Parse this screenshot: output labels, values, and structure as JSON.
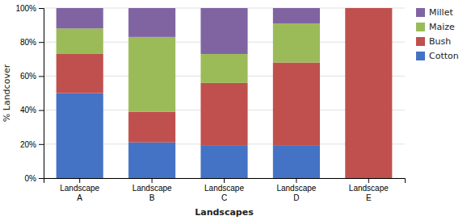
{
  "chart_data": {
    "type": "bar",
    "stacked": true,
    "categories": [
      "Landscape\nA",
      "Landscape\nB",
      "Landscape\nC",
      "Landscape\nD",
      "Landscape\nE"
    ],
    "series": [
      {
        "name": "Cotton",
        "color": "#4472C4",
        "values": [
          50,
          21,
          19,
          19,
          0
        ]
      },
      {
        "name": "Bush",
        "color": "#C0504D",
        "values": [
          23,
          18,
          37,
          49,
          100
        ]
      },
      {
        "name": "Maize",
        "color": "#9BBB59",
        "values": [
          15,
          44,
          17,
          23,
          0
        ]
      },
      {
        "name": "Millet",
        "color": "#8064A2",
        "values": [
          12,
          17,
          27,
          9,
          0
        ]
      }
    ],
    "xlabel": "Landscapes",
    "ylabel": "% Landcover",
    "ylim": [
      0,
      100
    ],
    "yticks": [
      {
        "value": 0,
        "label": "0%"
      },
      {
        "value": 20,
        "label": "20%"
      },
      {
        "value": 40,
        "label": "40%"
      },
      {
        "value": 60,
        "label": "60%"
      },
      {
        "value": 80,
        "label": "80%"
      },
      {
        "value": 100,
        "label": "100%"
      }
    ],
    "grid": true,
    "legend": "right"
  }
}
